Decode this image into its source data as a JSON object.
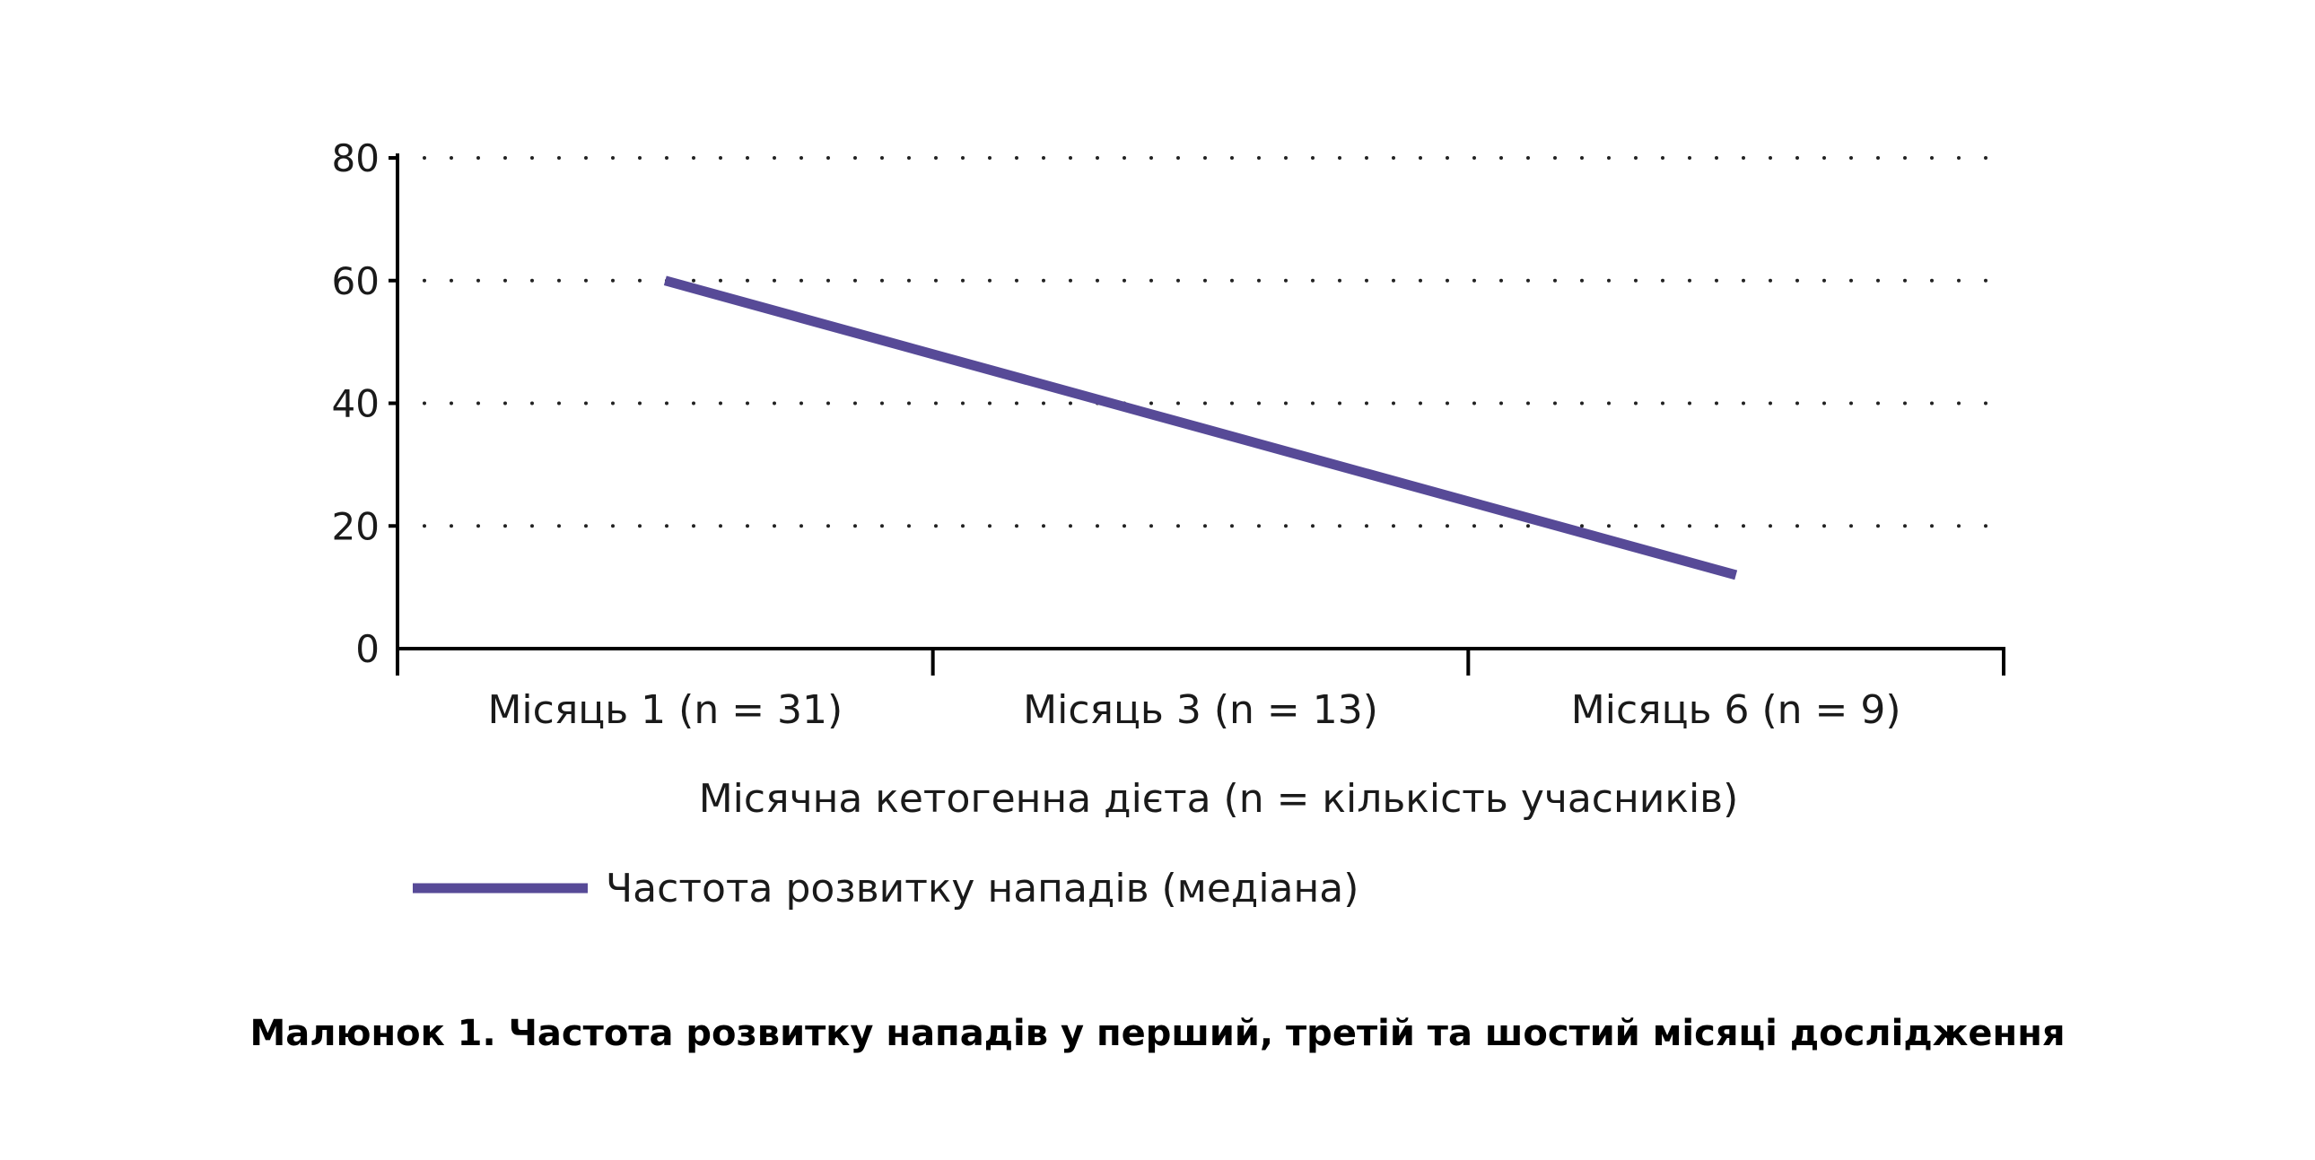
{
  "caption": "Малюнок 1. Частота розвитку нападів у перший, третій та шостий місяці дослідження",
  "chart_data": {
    "type": "line",
    "categories": [
      "Місяць 1 (n = 31)",
      "Місяць 3 (n = 13)",
      "Місяць 6 (n = 9)"
    ],
    "series": [
      {
        "name": "Частота розвитку нападів (медіана)",
        "values": [
          60,
          36,
          12
        ],
        "color": "#574a97"
      }
    ],
    "title": "",
    "xlabel": "Місячна кетогенна дієта (n = кількість учасників)",
    "ylabel": "",
    "ylim": [
      0,
      80
    ],
    "yticks": [
      "0",
      "20",
      "40",
      "60",
      "80"
    ],
    "grid": "dotted horizontal",
    "legend": "bottom-left"
  }
}
